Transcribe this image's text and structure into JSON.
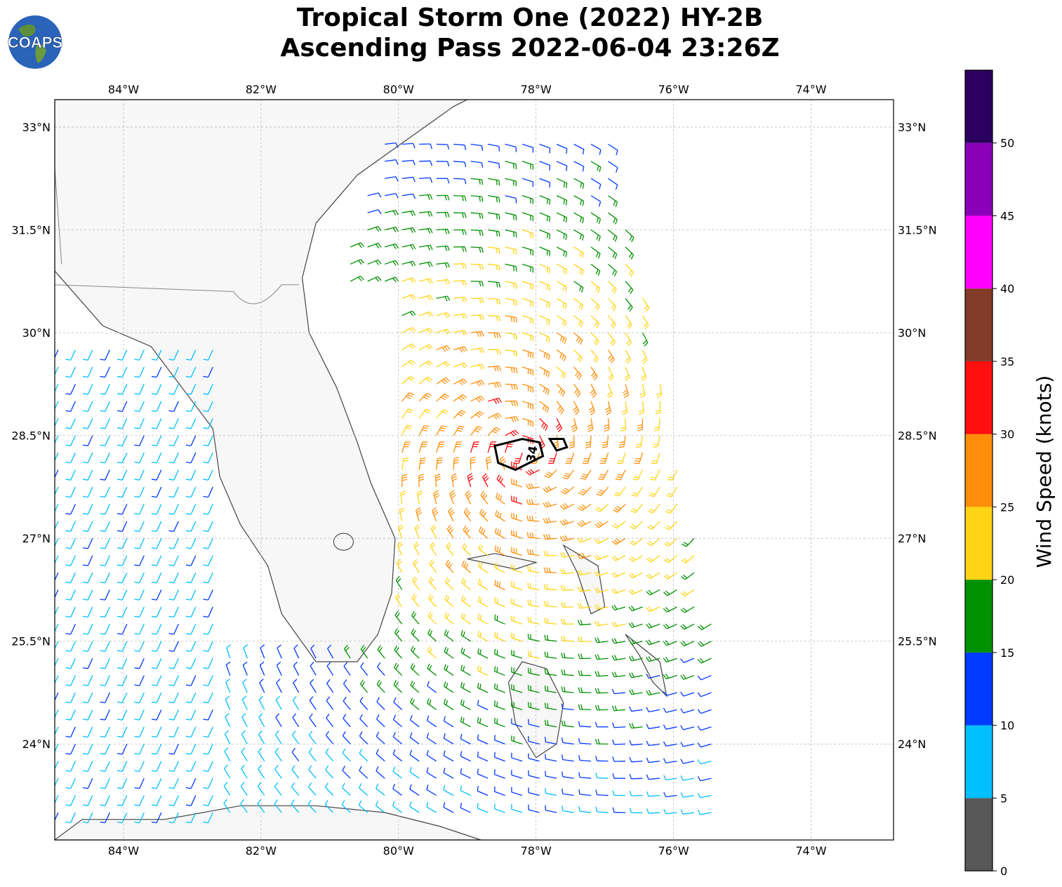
{
  "title": {
    "line1": "Tropical Storm One (2022) HY-2B",
    "line2": "Ascending Pass 2022-06-04 23:26Z"
  },
  "logo": {
    "text": "COAPS",
    "icon": "globe-logo"
  },
  "map": {
    "lon_ticks": [
      {
        "lon": -84,
        "label": "84°W"
      },
      {
        "lon": -82,
        "label": "82°W"
      },
      {
        "lon": -80,
        "label": "80°W"
      },
      {
        "lon": -78,
        "label": "78°W"
      },
      {
        "lon": -76,
        "label": "76°W"
      },
      {
        "lon": -74,
        "label": "74°W"
      }
    ],
    "lat_ticks": [
      {
        "lat": 33,
        "label": "33°N"
      },
      {
        "lat": 31.5,
        "label": "31.5°N"
      },
      {
        "lat": 30,
        "label": "30°N"
      },
      {
        "lat": 28.5,
        "label": "28.5°N"
      },
      {
        "lat": 27,
        "label": "27°N"
      },
      {
        "lat": 25.5,
        "label": "25.5°N"
      },
      {
        "lat": 24,
        "label": "24°N"
      }
    ],
    "extent": {
      "lon_min": -85,
      "lon_max": -72.8,
      "lat_min": 22.6,
      "lat_max": 33.4
    },
    "gridlines": true,
    "contour_label": "34",
    "colors": {
      "land": "#f7f7f7",
      "coast": "#444444",
      "border": "#888888",
      "grid": "#bbbbbb"
    }
  },
  "colorbar": {
    "label": "Wind Speed (knots)",
    "ticks": [
      "0",
      "5",
      "10",
      "15",
      "20",
      "25",
      "30",
      "35",
      "40",
      "45",
      "50"
    ],
    "bins": [
      {
        "from": 0,
        "to": 5,
        "color": "#575757"
      },
      {
        "from": 5,
        "to": 10,
        "color": "#00bfff"
      },
      {
        "from": 10,
        "to": 15,
        "color": "#0039ff"
      },
      {
        "from": 15,
        "to": 20,
        "color": "#009100"
      },
      {
        "from": 20,
        "to": 25,
        "color": "#ffd414"
      },
      {
        "from": 25,
        "to": 30,
        "color": "#ff8f0a"
      },
      {
        "from": 30,
        "to": 35,
        "color": "#ff0f0f"
      },
      {
        "from": 35,
        "to": 40,
        "color": "#823b28"
      },
      {
        "from": 40,
        "to": 45,
        "color": "#ff00ff"
      },
      {
        "from": 45,
        "to": 50,
        "color": "#8a00b8"
      },
      {
        "from": 50,
        "to": 55,
        "color": "#2b005e"
      }
    ]
  }
}
